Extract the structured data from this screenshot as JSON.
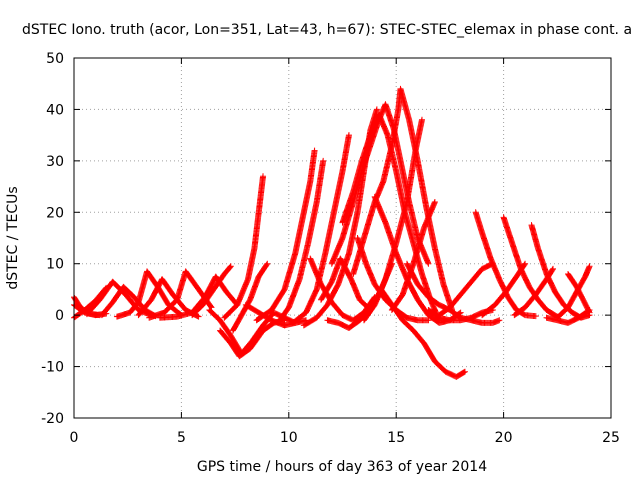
{
  "chart_data": {
    "type": "scatter",
    "title": "dSTEC Iono. truth (acor, Lon=351, Lat=43, h=67): STEC-STEC_elemax in phase cont. a",
    "xlabel": "GPS time / hours of day 363 of year 2014",
    "ylabel": "dSTEC  / TECUs",
    "xlim": [
      0,
      25
    ],
    "ylim": [
      -20,
      50
    ],
    "xticks": [
      0,
      5,
      10,
      15,
      20,
      25
    ],
    "yticks": [
      -20,
      -10,
      0,
      10,
      20,
      30,
      40,
      50
    ],
    "grid": true,
    "marker": "+",
    "color": "#ff0000",
    "series": [
      {
        "points": [
          [
            0.0,
            3.5
          ],
          [
            0.3,
            1.5
          ],
          [
            0.7,
            0.3
          ],
          [
            1.2,
            0.0
          ]
        ]
      },
      {
        "points": [
          [
            0.0,
            2.0
          ],
          [
            0.5,
            0.5
          ],
          [
            1.0,
            0.0
          ],
          [
            1.5,
            0.3
          ]
        ]
      },
      {
        "points": [
          [
            0.0,
            -0.5
          ],
          [
            0.5,
            1.0
          ],
          [
            1.0,
            2.8
          ],
          [
            1.5,
            5.3
          ]
        ]
      },
      {
        "points": [
          [
            0.6,
            0.2
          ],
          [
            1.2,
            3.0
          ],
          [
            1.8,
            6.5
          ],
          [
            2.4,
            4.0
          ],
          [
            3.0,
            1.0
          ],
          [
            3.6,
            0.0
          ]
        ]
      },
      {
        "points": [
          [
            1.3,
            0.0
          ],
          [
            1.8,
            2.5
          ],
          [
            2.3,
            5.5
          ],
          [
            2.8,
            3.5
          ],
          [
            3.3,
            1.0
          ],
          [
            3.8,
            -0.2
          ]
        ]
      },
      {
        "points": [
          [
            2.0,
            -0.3
          ],
          [
            2.6,
            0.5
          ],
          [
            3.0,
            2.5
          ],
          [
            3.4,
            8.5
          ],
          [
            3.9,
            5.5
          ],
          [
            4.4,
            2.0
          ],
          [
            5.0,
            0.0
          ]
        ]
      },
      {
        "points": [
          [
            3.0,
            0.0
          ],
          [
            3.6,
            3.0
          ],
          [
            4.1,
            7.0
          ],
          [
            4.6,
            4.0
          ],
          [
            5.2,
            1.0
          ],
          [
            5.8,
            -0.3
          ]
        ]
      },
      {
        "points": [
          [
            3.5,
            -0.5
          ],
          [
            4.2,
            0.5
          ],
          [
            4.8,
            3.0
          ],
          [
            5.2,
            8.5
          ],
          [
            5.8,
            5.0
          ],
          [
            6.4,
            1.5
          ]
        ]
      },
      {
        "points": [
          [
            4.0,
            -0.5
          ],
          [
            4.8,
            -0.3
          ],
          [
            5.5,
            0.5
          ],
          [
            6.1,
            3.5
          ],
          [
            6.6,
            7.5
          ],
          [
            7.1,
            4.5
          ],
          [
            7.6,
            2.0
          ]
        ]
      },
      {
        "points": [
          [
            5.5,
            0.0
          ],
          [
            6.0,
            2.0
          ],
          [
            6.5,
            5.0
          ],
          [
            7.0,
            8.0
          ],
          [
            7.3,
            9.5
          ]
        ]
      },
      {
        "points": [
          [
            6.3,
            1.0
          ],
          [
            6.8,
            -1.0
          ],
          [
            7.3,
            -4.0
          ],
          [
            7.8,
            -7.5
          ],
          [
            8.3,
            -5.0
          ],
          [
            8.8,
            -2.0
          ],
          [
            9.3,
            0.5
          ],
          [
            9.8,
            -0.5
          ],
          [
            10.3,
            -1.5
          ]
        ]
      },
      {
        "points": [
          [
            6.8,
            -3.0
          ],
          [
            7.3,
            -5.5
          ],
          [
            7.7,
            -8.0
          ],
          [
            8.2,
            -6.5
          ],
          [
            8.8,
            -3.0
          ],
          [
            9.3,
            -1.5
          ],
          [
            9.8,
            -1.0
          ]
        ]
      },
      {
        "points": [
          [
            7.0,
            -0.5
          ],
          [
            7.6,
            2.0
          ],
          [
            8.1,
            7.0
          ],
          [
            8.4,
            13.0
          ],
          [
            8.6,
            20.0
          ],
          [
            8.8,
            27.0
          ]
        ]
      },
      {
        "points": [
          [
            7.4,
            -3.0
          ],
          [
            7.8,
            0.0
          ],
          [
            8.2,
            3.0
          ],
          [
            8.6,
            7.5
          ],
          [
            9.0,
            10.0
          ]
        ]
      },
      {
        "points": [
          [
            8.0,
            2.0
          ],
          [
            8.6,
            0.5
          ],
          [
            9.2,
            -1.0
          ],
          [
            9.8,
            -2.0
          ],
          [
            10.3,
            -1.5
          ],
          [
            10.8,
            -1.0
          ]
        ]
      },
      {
        "points": [
          [
            8.5,
            -1.0
          ],
          [
            9.2,
            1.0
          ],
          [
            9.8,
            5.0
          ],
          [
            10.3,
            12.0
          ],
          [
            10.7,
            20.0
          ],
          [
            11.0,
            26.0
          ],
          [
            11.2,
            32.0
          ]
        ]
      },
      {
        "points": [
          [
            9.5,
            -1.5
          ],
          [
            10.0,
            1.5
          ],
          [
            10.5,
            7.0
          ],
          [
            10.9,
            14.0
          ],
          [
            11.3,
            22.0
          ],
          [
            11.6,
            30.0
          ]
        ]
      },
      {
        "points": [
          [
            10.2,
            -1.5
          ],
          [
            10.8,
            0.5
          ],
          [
            11.3,
            5.0
          ],
          [
            11.7,
            12.0
          ],
          [
            12.1,
            20.0
          ],
          [
            12.5,
            28.0
          ],
          [
            12.8,
            35.0
          ]
        ]
      },
      {
        "points": [
          [
            10.7,
            -2.0
          ],
          [
            11.3,
            -0.5
          ],
          [
            11.8,
            2.0
          ],
          [
            12.3,
            6.0
          ],
          [
            12.8,
            12.0
          ],
          [
            13.2,
            20.0
          ],
          [
            13.5,
            28.0
          ],
          [
            13.8,
            36.0
          ],
          [
            14.1,
            40.0
          ]
        ]
      },
      {
        "points": [
          [
            11.0,
            11.0
          ],
          [
            11.5,
            6.0
          ],
          [
            12.0,
            2.5
          ],
          [
            12.5,
            0.0
          ],
          [
            13.0,
            -1.0
          ],
          [
            13.5,
            0.5
          ],
          [
            14.0,
            3.5
          ]
        ]
      },
      {
        "points": [
          [
            11.5,
            3.0
          ],
          [
            12.0,
            6.5
          ],
          [
            12.4,
            11.0
          ],
          [
            12.9,
            7.0
          ],
          [
            13.3,
            3.0
          ],
          [
            13.8,
            1.0
          ]
        ]
      },
      {
        "points": [
          [
            11.8,
            -1.0
          ],
          [
            12.3,
            -1.5
          ],
          [
            12.8,
            -2.5
          ],
          [
            13.3,
            -1.0
          ],
          [
            13.8,
            1.0
          ],
          [
            14.3,
            5.0
          ],
          [
            14.8,
            10.0
          ]
        ]
      },
      {
        "points": [
          [
            12.0,
            10.0
          ],
          [
            12.5,
            15.0
          ],
          [
            13.0,
            22.0
          ],
          [
            13.4,
            28.0
          ],
          [
            13.8,
            33.0
          ],
          [
            14.2,
            38.0
          ],
          [
            14.5,
            41.0
          ],
          [
            14.9,
            36.0
          ],
          [
            15.2,
            30.0
          ],
          [
            15.6,
            22.0
          ],
          [
            16.0,
            15.0
          ],
          [
            16.5,
            10.0
          ]
        ]
      },
      {
        "points": [
          [
            12.5,
            18.0
          ],
          [
            13.0,
            24.0
          ],
          [
            13.4,
            30.0
          ],
          [
            13.8,
            35.0
          ],
          [
            14.2,
            39.0
          ],
          [
            14.6,
            35.0
          ],
          [
            15.0,
            28.0
          ],
          [
            15.4,
            20.0
          ],
          [
            15.8,
            14.0
          ],
          [
            16.2,
            8.0
          ],
          [
            16.6,
            3.0
          ],
          [
            17.0,
            -1.0
          ]
        ]
      },
      {
        "points": [
          [
            13.0,
            8.0
          ],
          [
            13.5,
            15.0
          ],
          [
            14.0,
            22.0
          ],
          [
            14.4,
            26.0
          ],
          [
            14.8,
            33.0
          ],
          [
            15.1,
            40.0
          ],
          [
            15.2,
            44.0
          ],
          [
            15.6,
            38.0
          ],
          [
            16.0,
            30.0
          ],
          [
            16.4,
            21.0
          ],
          [
            16.8,
            13.0
          ],
          [
            17.2,
            6.0
          ],
          [
            17.6,
            1.0
          ]
        ]
      },
      {
        "points": [
          [
            13.5,
            -1.0
          ],
          [
            14.0,
            2.0
          ],
          [
            14.5,
            7.0
          ],
          [
            15.0,
            14.0
          ],
          [
            15.5,
            22.0
          ],
          [
            15.9,
            32.0
          ],
          [
            16.2,
            38.0
          ]
        ]
      },
      {
        "points": [
          [
            13.2,
            15.0
          ],
          [
            13.6,
            10.0
          ],
          [
            14.0,
            6.0
          ],
          [
            14.5,
            3.0
          ],
          [
            15.0,
            1.0
          ],
          [
            15.5,
            -0.5
          ],
          [
            16.0,
            -1.0
          ],
          [
            16.5,
            -1.0
          ]
        ]
      },
      {
        "points": [
          [
            14.0,
            23.0
          ],
          [
            14.5,
            18.0
          ],
          [
            15.0,
            12.0
          ],
          [
            15.5,
            7.0
          ],
          [
            16.0,
            3.0
          ],
          [
            16.5,
            0.0
          ],
          [
            17.0,
            -1.5
          ],
          [
            17.5,
            -1.0
          ],
          [
            18.0,
            0.5
          ]
        ]
      },
      {
        "points": [
          [
            14.3,
            5.0
          ],
          [
            14.8,
            2.0
          ],
          [
            15.3,
            -1.0
          ],
          [
            15.8,
            -3.0
          ],
          [
            16.3,
            -5.5
          ],
          [
            16.8,
            -9.0
          ],
          [
            17.3,
            -11.0
          ],
          [
            17.8,
            -12.0
          ],
          [
            18.2,
            -11.0
          ]
        ]
      },
      {
        "points": [
          [
            14.8,
            1.0
          ],
          [
            15.3,
            4.0
          ],
          [
            15.8,
            10.0
          ],
          [
            16.3,
            17.0
          ],
          [
            16.8,
            22.0
          ]
        ]
      },
      {
        "points": [
          [
            15.5,
            10.0
          ],
          [
            16.0,
            6.0
          ],
          [
            16.5,
            3.5
          ],
          [
            17.0,
            2.0
          ],
          [
            17.5,
            1.0
          ],
          [
            18.0,
            -0.5
          ],
          [
            18.5,
            -1.0
          ],
          [
            19.0,
            -1.5
          ],
          [
            19.5,
            -1.5
          ],
          [
            19.8,
            -1.0
          ]
        ]
      },
      {
        "points": [
          [
            16.5,
            1.0
          ],
          [
            17.0,
            -0.5
          ],
          [
            17.5,
            -1.0
          ],
          [
            18.0,
            -1.0
          ],
          [
            18.5,
            -0.5
          ],
          [
            19.0,
            0.5
          ],
          [
            19.5,
            1.0
          ]
        ]
      },
      {
        "points": [
          [
            17.0,
            0.0
          ],
          [
            17.5,
            1.5
          ],
          [
            18.0,
            4.0
          ],
          [
            18.5,
            6.5
          ],
          [
            19.0,
            9.0
          ],
          [
            19.5,
            10.0
          ]
        ]
      },
      {
        "points": [
          [
            18.7,
            20.0
          ],
          [
            19.0,
            16.0
          ],
          [
            19.4,
            11.0
          ],
          [
            19.8,
            7.0
          ],
          [
            20.2,
            3.5
          ],
          [
            20.6,
            1.0
          ],
          [
            21.0,
            0.0
          ],
          [
            21.5,
            -0.2
          ]
        ]
      },
      {
        "points": [
          [
            19.0,
            0.0
          ],
          [
            19.6,
            2.0
          ],
          [
            20.1,
            4.5
          ],
          [
            20.6,
            7.5
          ],
          [
            21.0,
            10.0
          ]
        ]
      },
      {
        "points": [
          [
            20.0,
            19.0
          ],
          [
            20.4,
            14.0
          ],
          [
            20.8,
            9.0
          ],
          [
            21.2,
            5.5
          ],
          [
            21.6,
            3.0
          ],
          [
            22.0,
            1.0
          ],
          [
            22.5,
            -0.3
          ]
        ]
      },
      {
        "points": [
          [
            20.5,
            0.0
          ],
          [
            21.0,
            1.5
          ],
          [
            21.5,
            4.0
          ],
          [
            22.0,
            7.0
          ],
          [
            22.3,
            9.0
          ]
        ]
      },
      {
        "points": [
          [
            21.3,
            17.5
          ],
          [
            21.6,
            13.0
          ],
          [
            22.0,
            8.0
          ],
          [
            22.4,
            4.5
          ],
          [
            22.8,
            2.0
          ],
          [
            23.2,
            0.5
          ],
          [
            23.6,
            -0.5
          ],
          [
            24.0,
            0.0
          ]
        ]
      },
      {
        "points": [
          [
            22.0,
            -0.5
          ],
          [
            22.5,
            -1.0
          ],
          [
            23.0,
            -1.5
          ],
          [
            23.5,
            -0.5
          ],
          [
            24.0,
            1.0
          ]
        ]
      },
      {
        "points": [
          [
            22.5,
            -0.5
          ],
          [
            23.0,
            1.5
          ],
          [
            23.4,
            4.5
          ],
          [
            23.8,
            7.5
          ],
          [
            24.0,
            9.5
          ]
        ]
      },
      {
        "points": [
          [
            23.0,
            8.0
          ],
          [
            23.4,
            5.5
          ],
          [
            23.7,
            3.0
          ],
          [
            24.0,
            0.5
          ]
        ]
      }
    ]
  }
}
